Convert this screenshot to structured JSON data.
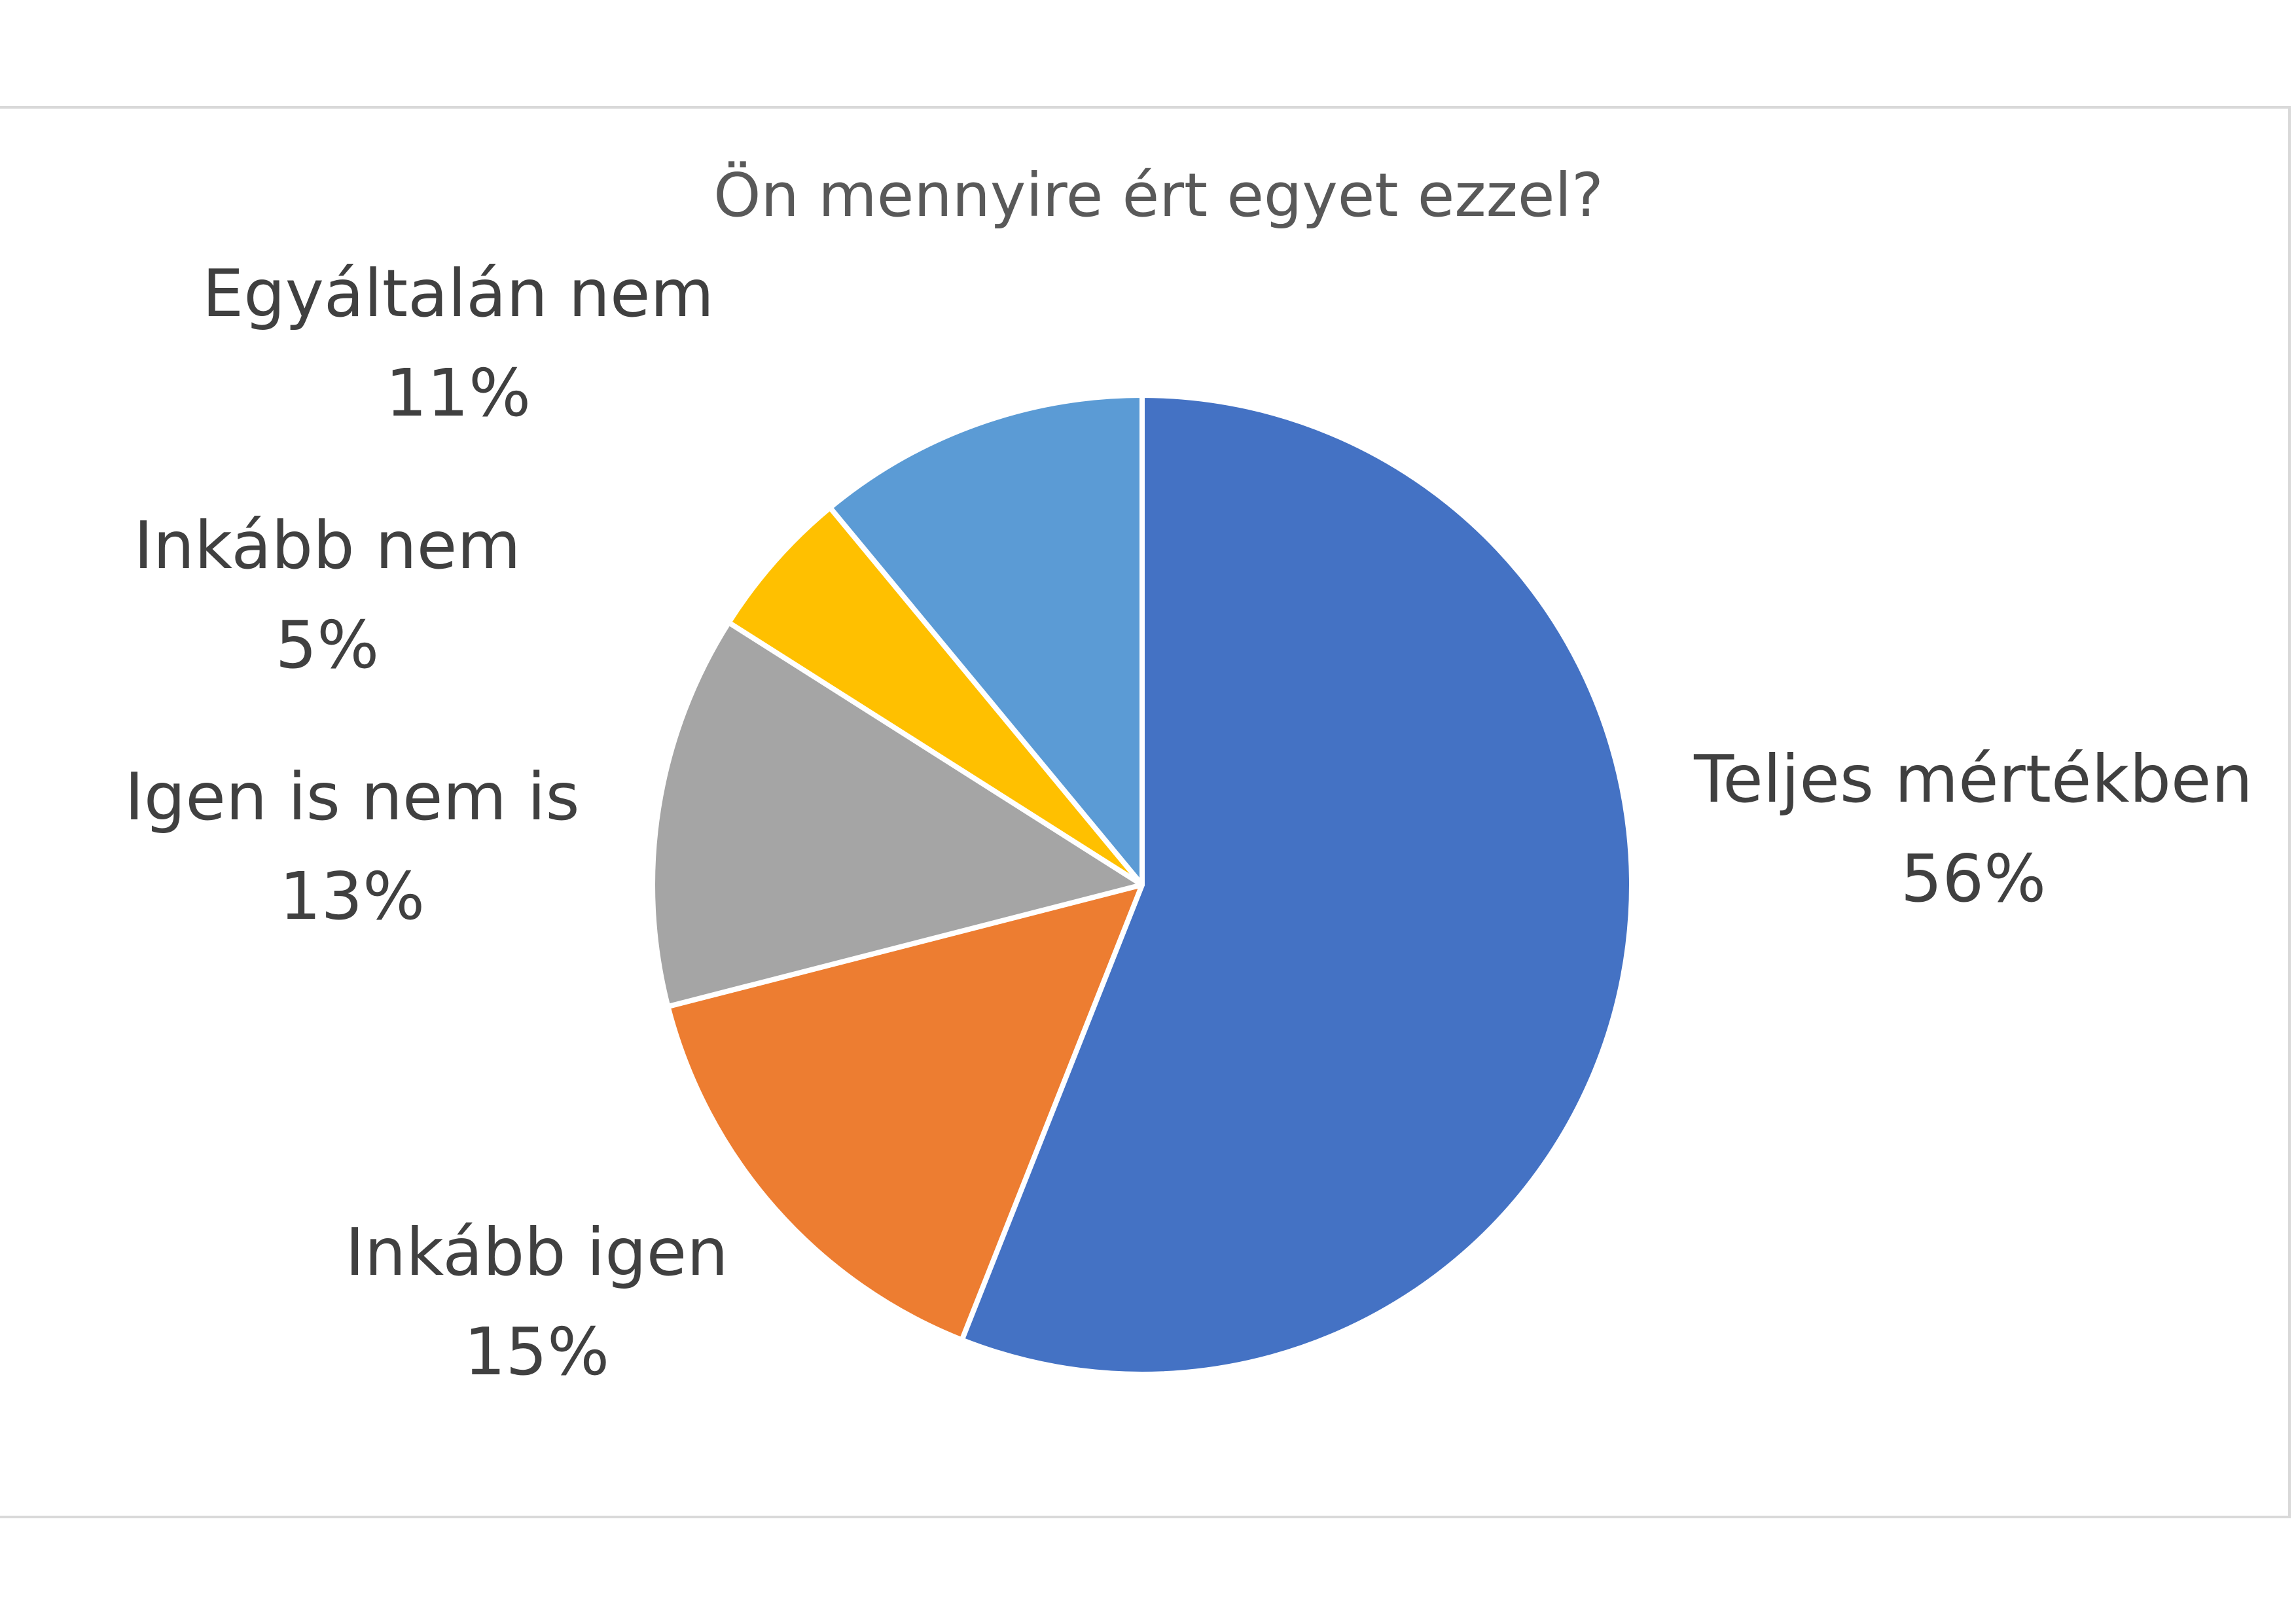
{
  "chart_data": {
    "type": "pie",
    "title": "Ön mennyire ért egyet ezzel?",
    "start_angle_deg": 0,
    "direction": "clockwise",
    "slices": [
      {
        "label": "Teljes mértékben",
        "value": 56,
        "display": "56%",
        "color": "#4472C4"
      },
      {
        "label": "Inkább igen",
        "value": 15,
        "display": "15%",
        "color": "#ED7D31"
      },
      {
        "label": "Igen is nem is",
        "value": 13,
        "display": "13%",
        "color": "#A5A5A5"
      },
      {
        "label": "Inkább nem",
        "value": 5,
        "display": "5%",
        "color": "#FFC000"
      },
      {
        "label": "Egyáltalán nem",
        "value": 11,
        "display": "11%",
        "color": "#5B9BD5"
      }
    ],
    "legend": "none"
  }
}
